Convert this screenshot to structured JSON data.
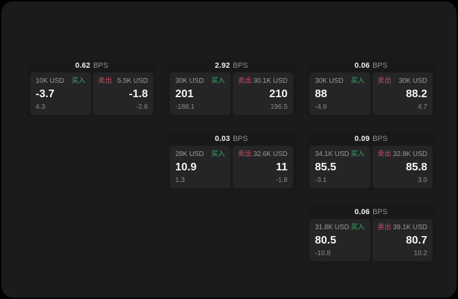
{
  "labels": {
    "buy": "买入",
    "sell": "卖出",
    "bps_suffix": "BPS"
  },
  "colors": {
    "outside_background": "#000000",
    "window_background": "#1b1b1d",
    "card_background": "#19191a",
    "panel_background": "#252527",
    "buy_green": "#3aab6b",
    "sell_red": "#c85067",
    "value_white": "#f5f5f5",
    "label_gray": "#9c9c9c",
    "sub_gray": "#8b8b8b"
  },
  "cards": [
    {
      "bps": "0.62",
      "buy": {
        "amount": "10K USD",
        "value": "-3.7",
        "sub": "4.3"
      },
      "sell": {
        "amount": "5.5K USD",
        "value": "-1.8",
        "sub": "-2.6"
      }
    },
    {
      "bps": "2.92",
      "buy": {
        "amount": "30K USD",
        "value": "201",
        "sub": "-188.1"
      },
      "sell": {
        "amount": "30.1K USD",
        "value": "210",
        "sub": "196.5"
      }
    },
    {
      "bps": "0.06",
      "buy": {
        "amount": "30K USD",
        "value": "88",
        "sub": "-4.9"
      },
      "sell": {
        "amount": "30K USD",
        "value": "88.2",
        "sub": "4.7"
      }
    },
    {
      "bps": "0.03",
      "buy": {
        "amount": "28K USD",
        "value": "10.9",
        "sub": "1.3"
      },
      "sell": {
        "amount": "32.6K USD",
        "value": "11",
        "sub": "-1.8"
      }
    },
    {
      "bps": "0.09",
      "buy": {
        "amount": "34.1K USD",
        "value": "85.5",
        "sub": "-3.1"
      },
      "sell": {
        "amount": "32.8K USD",
        "value": "85.8",
        "sub": "3.0"
      }
    },
    {
      "bps": "0.06",
      "buy": {
        "amount": "31.8K USD",
        "value": "80.5",
        "sub": "-10.8"
      },
      "sell": {
        "amount": "39.1K USD",
        "value": "80.7",
        "sub": "10.2"
      }
    }
  ]
}
